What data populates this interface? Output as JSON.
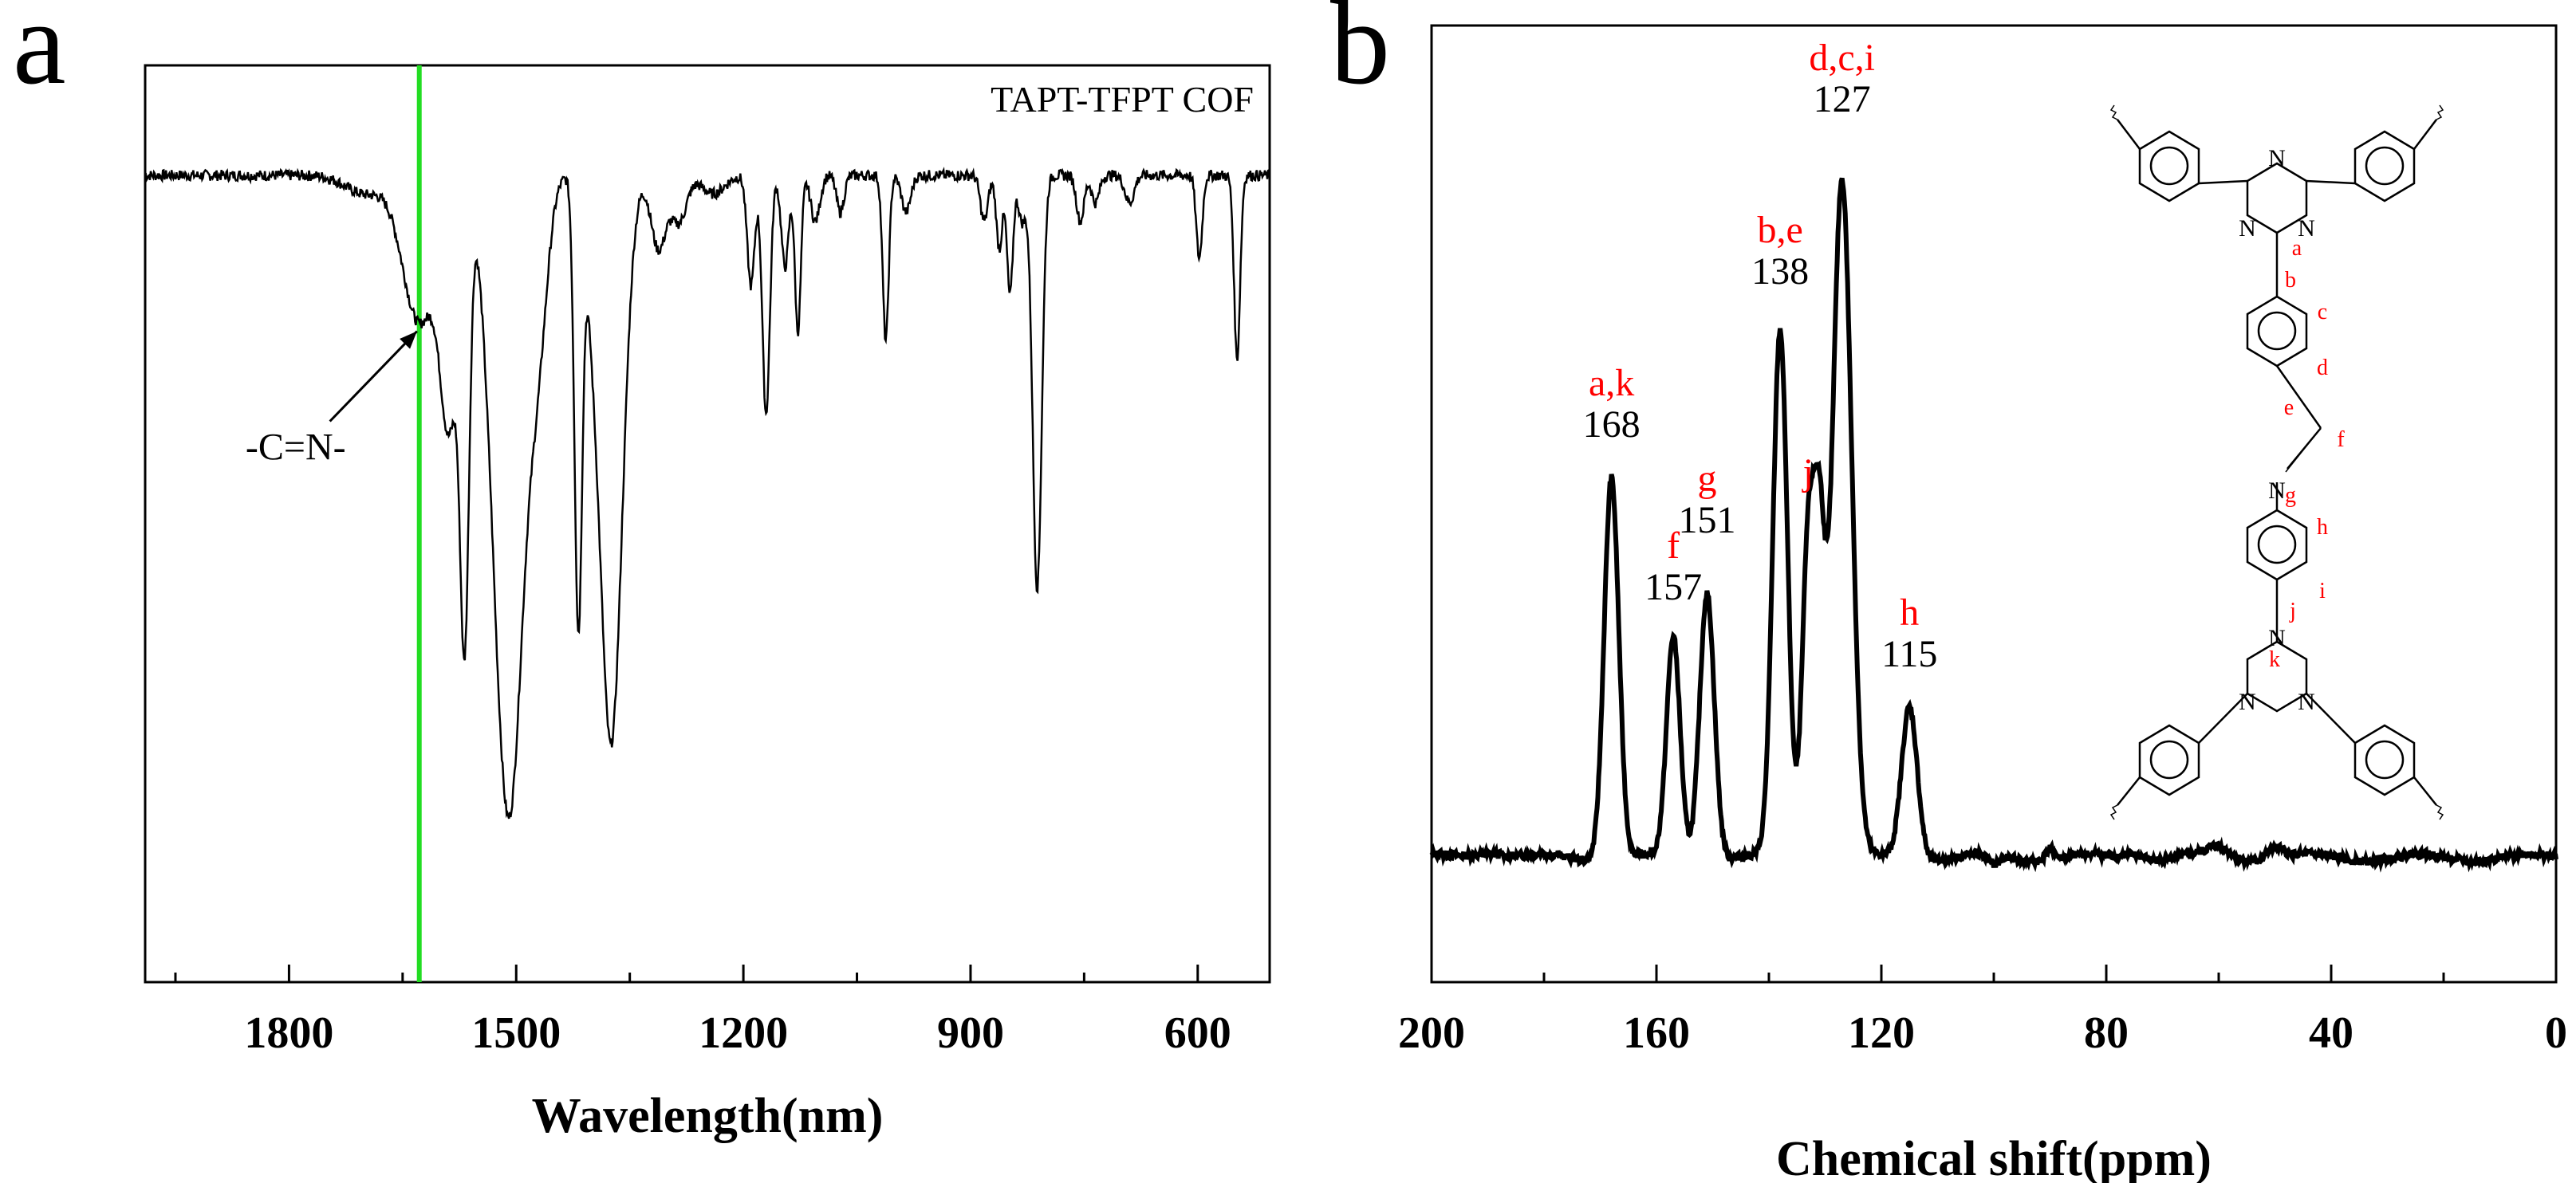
{
  "panels": [
    {
      "letter": "a",
      "chart_data": {
        "type": "line",
        "title": "TAPT-TFPT COF",
        "xlabel": "Wavelength(nm)",
        "ylabel": "",
        "xlim": [
          1990,
          505
        ],
        "ylim": [
          0,
          1
        ],
        "xticks": [
          1800,
          1500,
          1200,
          900,
          600
        ],
        "xtick_labels": [
          "1800",
          "1500",
          "1200",
          "900",
          "600"
        ],
        "baseline": 0.88,
        "ripple": 0.006,
        "dips": [
          {
            "x": 1700,
            "depth": 0.02,
            "width": 25
          },
          {
            "x": 1628,
            "depth": 0.16,
            "width": 22
          },
          {
            "x": 1588,
            "depth": 0.25,
            "width": 12
          },
          {
            "x": 1568,
            "depth": 0.45,
            "width": 6
          },
          {
            "x": 1510,
            "depth": 0.7,
            "width": 20
          },
          {
            "x": 1470,
            "depth": 0.14,
            "width": 12
          },
          {
            "x": 1418,
            "depth": 0.48,
            "width": 5
          },
          {
            "x": 1402,
            "depth": 0.06,
            "width": 8
          },
          {
            "x": 1375,
            "depth": 0.62,
            "width": 15
          },
          {
            "x": 1312,
            "depth": 0.08,
            "width": 10
          },
          {
            "x": 1285,
            "depth": 0.05,
            "width": 10
          },
          {
            "x": 1240,
            "depth": 0.02,
            "width": 15
          },
          {
            "x": 1190,
            "depth": 0.12,
            "width": 5
          },
          {
            "x": 1170,
            "depth": 0.26,
            "width": 5
          },
          {
            "x": 1145,
            "depth": 0.1,
            "width": 5
          },
          {
            "x": 1128,
            "depth": 0.17,
            "width": 4
          },
          {
            "x": 1105,
            "depth": 0.05,
            "width": 6
          },
          {
            "x": 1072,
            "depth": 0.04,
            "width": 5
          },
          {
            "x": 1012,
            "depth": 0.18,
            "width": 4
          },
          {
            "x": 985,
            "depth": 0.04,
            "width": 6
          },
          {
            "x": 882,
            "depth": 0.05,
            "width": 5
          },
          {
            "x": 862,
            "depth": 0.08,
            "width": 4
          },
          {
            "x": 848,
            "depth": 0.13,
            "width": 4
          },
          {
            "x": 832,
            "depth": 0.05,
            "width": 5
          },
          {
            "x": 812,
            "depth": 0.45,
            "width": 6
          },
          {
            "x": 755,
            "depth": 0.05,
            "width": 5
          },
          {
            "x": 735,
            "depth": 0.03,
            "width": 5
          },
          {
            "x": 690,
            "depth": 0.03,
            "width": 6
          },
          {
            "x": 598,
            "depth": 0.09,
            "width": 4
          },
          {
            "x": 548,
            "depth": 0.2,
            "width": 4
          }
        ],
        "highlight_line": {
          "x": 1628,
          "color": "#22dd22"
        },
        "annotations": [
          {
            "text": "-C=N-",
            "x": 1725,
            "y": 0.57,
            "arrow_to": {
              "x": 1631,
              "y": 0.71
            }
          }
        ]
      }
    },
    {
      "letter": "b",
      "chart_data": {
        "type": "line",
        "title": "",
        "xlabel": "Chemical shift(ppm)",
        "ylabel": "",
        "xlim": [
          200,
          0
        ],
        "ylim": [
          0,
          1
        ],
        "xticks": [
          200,
          160,
          120,
          80,
          40,
          0
        ],
        "xtick_labels": [
          "200",
          "160",
          "120",
          "80",
          "40",
          "0"
        ],
        "baseline": 0.13,
        "ripple": 0.004,
        "peaks": [
          {
            "x": 168,
            "height": 0.4,
            "width": 1.3
          },
          {
            "x": 157,
            "height": 0.23,
            "width": 1.2
          },
          {
            "x": 151,
            "height": 0.28,
            "width": 1.3
          },
          {
            "x": 138,
            "height": 0.55,
            "width": 1.3
          },
          {
            "x": 133,
            "height": 0.33,
            "width": 1.1
          },
          {
            "x": 131,
            "height": 0.3,
            "width": 1.0
          },
          {
            "x": 127,
            "height": 0.71,
            "width": 1.7
          },
          {
            "x": 115,
            "height": 0.16,
            "width": 1.4
          },
          {
            "x": 190,
            "height": 0.008,
            "width": 3
          },
          {
            "x": 90,
            "height": 0.012,
            "width": 0.8
          },
          {
            "x": 60,
            "height": 0.01,
            "width": 2
          },
          {
            "x": 50,
            "height": 0.012,
            "width": 1.5
          },
          {
            "x": 75,
            "height": 0.006,
            "width": 2
          },
          {
            "x": 100,
            "height": -0.01,
            "width": 1
          }
        ],
        "peak_labels": [
          {
            "assign": "a,k",
            "value": "168",
            "x": 168,
            "y_top": 0.57
          },
          {
            "assign": "f",
            "value": "157",
            "x": 157,
            "y_top": 0.4
          },
          {
            "assign": "g",
            "value": "151",
            "x": 151,
            "y_top": 0.47
          },
          {
            "assign": "b,e",
            "value": "138",
            "x": 138,
            "y_top": 0.73
          },
          {
            "assign": "j",
            "value": "",
            "x": 133,
            "y_top": 0.52
          },
          {
            "assign": "d,c,i",
            "value": "127",
            "x": 127,
            "y_top": 0.91
          },
          {
            "assign": "h",
            "value": "115",
            "x": 115,
            "y_top": 0.33
          }
        ]
      },
      "structure": {
        "atom_labels": [
          "a",
          "b",
          "c",
          "d",
          "e",
          "f",
          "g",
          "h",
          "i",
          "j",
          "k"
        ],
        "hetero_atoms": [
          "N",
          "N",
          "N",
          "N",
          "N",
          "N",
          "N"
        ]
      }
    }
  ],
  "colors": {
    "spectrum": "#000000",
    "highlight": "#22dd22",
    "assignment_red": "#ff0000"
  }
}
